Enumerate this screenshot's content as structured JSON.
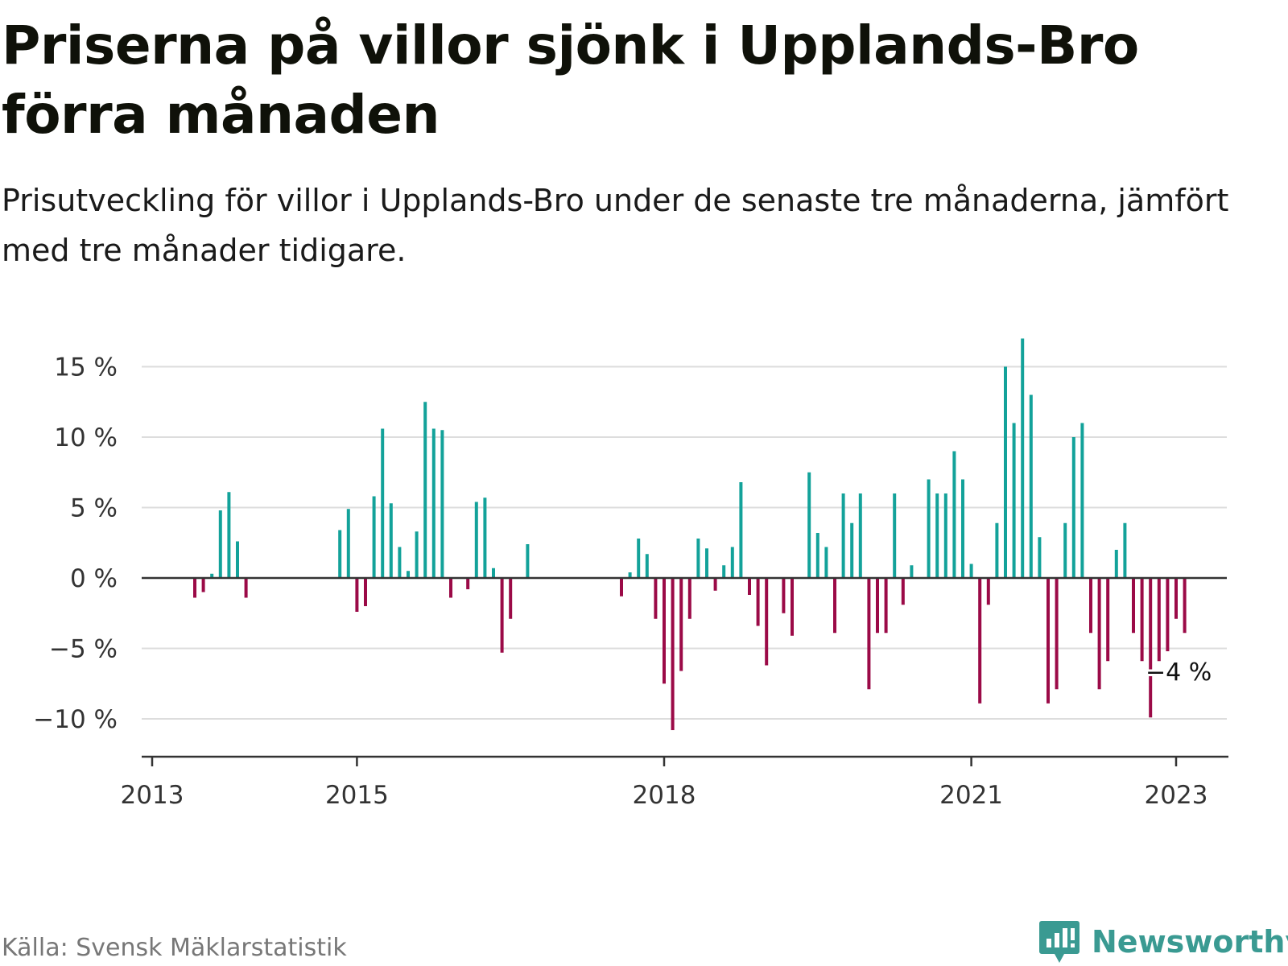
{
  "header": {
    "title": "Priserna på villor sjönk i Upplands-Bro förra månaden",
    "subtitle": "Prisutveckling för villor i Upplands-Bro under de senaste tre månaderna, jämfört med tre månader tidigare."
  },
  "footer": {
    "source": "Källa: Svensk Mäklarstatistik",
    "brand": "Newsworthy"
  },
  "colors": {
    "positive": "#13a29a",
    "negative": "#9b0a47",
    "grid": "#dddddd",
    "zero_line": "#333333",
    "brand": "#3a9a92"
  },
  "chart_data": {
    "type": "bar",
    "title": "Priserna på villor sjönk i Upplands-Bro förra månaden",
    "subtitle": "Prisutveckling för villor i Upplands-Bro under de senaste tre månaderna, jämfört med tre månader tidigare.",
    "xlabel": "",
    "ylabel": "",
    "ylim": [
      -12,
      17
    ],
    "yticks": [
      15,
      10,
      5,
      0,
      -5,
      -10
    ],
    "ytick_labels": [
      "15 %",
      "10 %",
      "5 %",
      "0 %",
      "−5 %",
      "−10 %"
    ],
    "xticks": [
      "2013-01",
      "2015-01",
      "2018-01",
      "2021-01",
      "2023-01"
    ],
    "xtick_labels": [
      "2013",
      "2015",
      "2018",
      "2021",
      "2023"
    ],
    "grid": true,
    "annotation": {
      "text": "−4 %",
      "x": "2023-01",
      "y": -3.9
    },
    "bars": [
      {
        "x": "2013-06",
        "y": -1.4
      },
      {
        "x": "2013-07",
        "y": -1.0
      },
      {
        "x": "2013-08",
        "y": 0.3
      },
      {
        "x": "2013-09",
        "y": 4.8
      },
      {
        "x": "2013-10",
        "y": 6.1
      },
      {
        "x": "2013-11",
        "y": 2.6
      },
      {
        "x": "2013-12",
        "y": -1.4
      },
      {
        "x": "2014-11",
        "y": 3.4
      },
      {
        "x": "2014-12",
        "y": 4.9
      },
      {
        "x": "2015-01",
        "y": -2.4
      },
      {
        "x": "2015-02",
        "y": -2.0
      },
      {
        "x": "2015-03",
        "y": 5.8
      },
      {
        "x": "2015-04",
        "y": 10.6
      },
      {
        "x": "2015-05",
        "y": 5.3
      },
      {
        "x": "2015-06",
        "y": 2.2
      },
      {
        "x": "2015-07",
        "y": 0.5
      },
      {
        "x": "2015-08",
        "y": 3.3
      },
      {
        "x": "2015-09",
        "y": 12.5
      },
      {
        "x": "2015-10",
        "y": 10.6
      },
      {
        "x": "2015-11",
        "y": 10.5
      },
      {
        "x": "2015-12",
        "y": -1.4
      },
      {
        "x": "2016-02",
        "y": -0.8
      },
      {
        "x": "2016-03",
        "y": 5.4
      },
      {
        "x": "2016-04",
        "y": 5.7
      },
      {
        "x": "2016-05",
        "y": 0.7
      },
      {
        "x": "2016-06",
        "y": -5.3
      },
      {
        "x": "2016-07",
        "y": -2.9
      },
      {
        "x": "2016-09",
        "y": 2.4
      },
      {
        "x": "2017-08",
        "y": -1.3
      },
      {
        "x": "2017-09",
        "y": 0.4
      },
      {
        "x": "2017-10",
        "y": 2.8
      },
      {
        "x": "2017-11",
        "y": 1.7
      },
      {
        "x": "2017-12",
        "y": -2.9
      },
      {
        "x": "2018-01",
        "y": -7.5
      },
      {
        "x": "2018-02",
        "y": -10.8
      },
      {
        "x": "2018-03",
        "y": -6.6
      },
      {
        "x": "2018-04",
        "y": -2.9
      },
      {
        "x": "2018-05",
        "y": 2.8
      },
      {
        "x": "2018-06",
        "y": 2.1
      },
      {
        "x": "2018-07",
        "y": -0.9
      },
      {
        "x": "2018-08",
        "y": 0.9
      },
      {
        "x": "2018-09",
        "y": 2.2
      },
      {
        "x": "2018-10",
        "y": 6.8
      },
      {
        "x": "2018-11",
        "y": -1.2
      },
      {
        "x": "2018-12",
        "y": -3.4
      },
      {
        "x": "2019-01",
        "y": -6.2
      },
      {
        "x": "2019-03",
        "y": -2.5
      },
      {
        "x": "2019-04",
        "y": -4.1
      },
      {
        "x": "2019-06",
        "y": 7.5
      },
      {
        "x": "2019-07",
        "y": 3.2
      },
      {
        "x": "2019-08",
        "y": 2.2
      },
      {
        "x": "2019-09",
        "y": -3.9
      },
      {
        "x": "2019-10",
        "y": 6.0
      },
      {
        "x": "2019-11",
        "y": 3.9
      },
      {
        "x": "2019-12",
        "y": 6.0
      },
      {
        "x": "2020-01",
        "y": -7.9
      },
      {
        "x": "2020-02",
        "y": -3.9
      },
      {
        "x": "2020-03",
        "y": -3.9
      },
      {
        "x": "2020-04",
        "y": 6.0
      },
      {
        "x": "2020-05",
        "y": -1.9
      },
      {
        "x": "2020-06",
        "y": 0.9
      },
      {
        "x": "2020-08",
        "y": 7.0
      },
      {
        "x": "2020-09",
        "y": 6.0
      },
      {
        "x": "2020-10",
        "y": 6.0
      },
      {
        "x": "2020-11",
        "y": 9.0
      },
      {
        "x": "2020-12",
        "y": 7.0
      },
      {
        "x": "2021-01",
        "y": 1.0
      },
      {
        "x": "2021-02",
        "y": -8.9
      },
      {
        "x": "2021-03",
        "y": -1.9
      },
      {
        "x": "2021-04",
        "y": 3.9
      },
      {
        "x": "2021-05",
        "y": 15.0
      },
      {
        "x": "2021-06",
        "y": 11.0
      },
      {
        "x": "2021-07",
        "y": 17.0
      },
      {
        "x": "2021-08",
        "y": 13.0
      },
      {
        "x": "2021-09",
        "y": 2.9
      },
      {
        "x": "2021-10",
        "y": -8.9
      },
      {
        "x": "2021-11",
        "y": -7.9
      },
      {
        "x": "2021-12",
        "y": 3.9
      },
      {
        "x": "2022-01",
        "y": 10.0
      },
      {
        "x": "2022-02",
        "y": 11.0
      },
      {
        "x": "2022-03",
        "y": -3.9
      },
      {
        "x": "2022-04",
        "y": -7.9
      },
      {
        "x": "2022-05",
        "y": -5.9
      },
      {
        "x": "2022-06",
        "y": 2.0
      },
      {
        "x": "2022-07",
        "y": 3.9
      },
      {
        "x": "2022-08",
        "y": -3.9
      },
      {
        "x": "2022-09",
        "y": -5.9
      },
      {
        "x": "2022-10",
        "y": -9.9
      },
      {
        "x": "2022-11",
        "y": -5.9
      },
      {
        "x": "2022-12",
        "y": -5.2
      },
      {
        "x": "2023-01",
        "y": -2.9
      },
      {
        "x": "2023-02",
        "y": -3.9
      }
    ]
  }
}
